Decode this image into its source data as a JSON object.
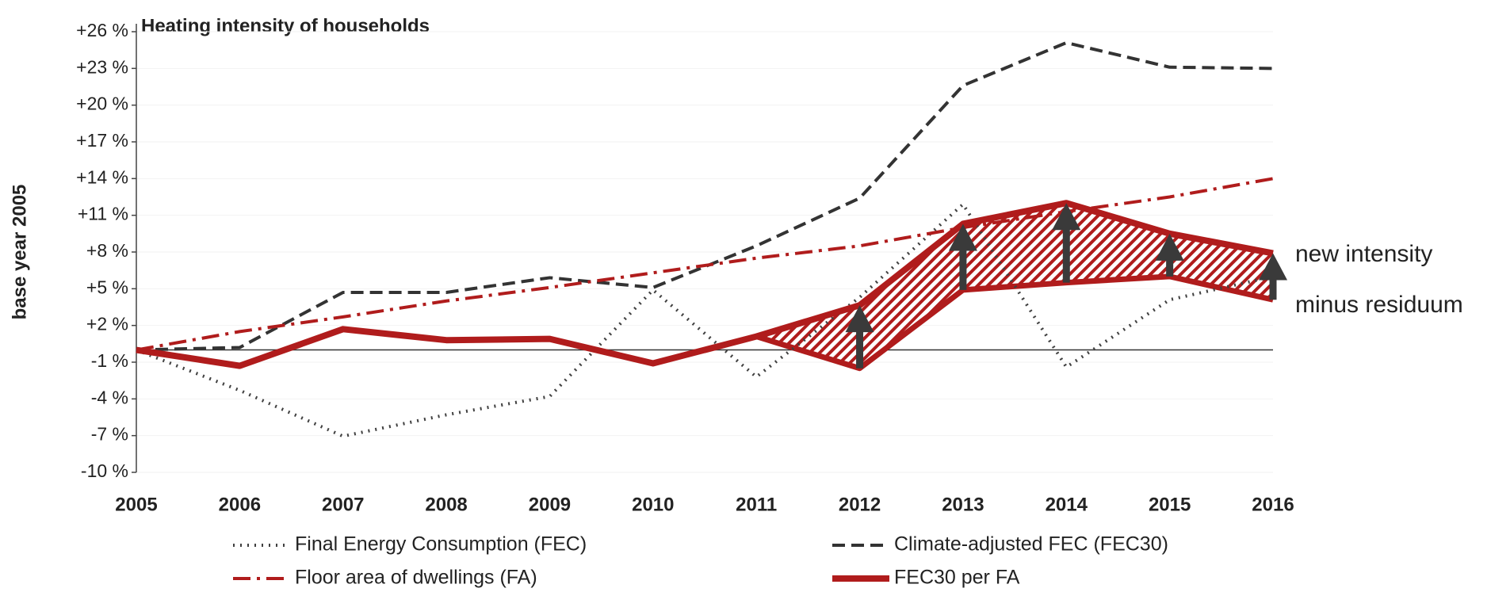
{
  "chart_data": {
    "type": "line",
    "title": "Heating intensity of households",
    "y_label": "base year 2005",
    "categories": [
      "2005",
      "2006",
      "2007",
      "2008",
      "2009",
      "2010",
      "2011",
      "2012",
      "2013",
      "2014",
      "2015",
      "2016"
    ],
    "ylim": [
      -10,
      26
    ],
    "yticks": [
      {
        "value": -10,
        "label": "-10 %"
      },
      {
        "value": -7,
        "label": "-7 %"
      },
      {
        "value": -4,
        "label": "-4 %"
      },
      {
        "value": -1,
        "label": "-1 %"
      },
      {
        "value": 2,
        "label": "+2 %"
      },
      {
        "value": 5,
        "label": "+5 %"
      },
      {
        "value": 8,
        "label": "+8 %"
      },
      {
        "value": 11,
        "label": "+11 %"
      },
      {
        "value": 14,
        "label": "+14 %"
      },
      {
        "value": 17,
        "label": "+17 %"
      },
      {
        "value": 20,
        "label": "+20 %"
      },
      {
        "value": 23,
        "label": "+23 %"
      },
      {
        "value": 26,
        "label": "+26 %"
      }
    ],
    "grid": true,
    "series": [
      {
        "name": "Final Energy Consumption (FEC)",
        "color": "#404040",
        "style": "dotted",
        "values": [
          0,
          -3.3,
          -7.05,
          -5.3,
          -3.8,
          4.9,
          -2.2,
          4.3,
          11.9,
          -1.4,
          4.1,
          6
        ]
      },
      {
        "name": "Climate-adjusted FEC (FEC30)",
        "color": "#333333",
        "style": "dashed",
        "values": [
          0,
          0.2,
          4.7,
          4.7,
          5.9,
          5.1,
          8.5,
          12.4,
          21.6,
          25.1,
          23.1,
          23.0
        ]
      },
      {
        "name": "Floor area of dwellings (FA)",
        "color": "#b01c1c",
        "style": "dashdot",
        "values": [
          0,
          1.5,
          2.7,
          4.0,
          5.1,
          6.3,
          7.5,
          8.5,
          10.0,
          11.3,
          12.5,
          14.0
        ]
      },
      {
        "name": "FEC30 per FA",
        "color": "#b01c1c",
        "style": "solid",
        "values": [
          0,
          -1.3,
          1.7,
          0.8,
          0.9,
          -1.1,
          1.1,
          3.65,
          10.3,
          12.0,
          9.5,
          7.9
        ]
      }
    ],
    "band_lower": [
      null,
      null,
      null,
      null,
      null,
      null,
      1.1,
      -1.5,
      4.9,
      5.5,
      6.0,
      4.1
    ],
    "annotations": [
      "new intensity",
      "minus residuum"
    ]
  }
}
